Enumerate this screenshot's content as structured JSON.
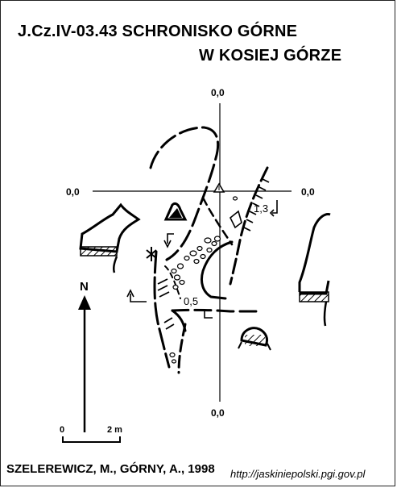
{
  "title": {
    "line1": "J.Cz.IV-03.43  SCHRONISKO  GÓRNE",
    "line2": "W KOSIEJ GÓRZE"
  },
  "datum": {
    "top": "0,0",
    "left": "0,0",
    "right": "0,0",
    "bottom": "0,0"
  },
  "heights": {
    "niche": "1,3",
    "passage": "0,5"
  },
  "north_label": "N",
  "scale": {
    "start": "0",
    "end": "2 m"
  },
  "footer": {
    "authors": "SZELEREWICZ, M., GÓRNY, A., 1998",
    "url": "http://jaskiniepolski.pgi.gov.pl"
  }
}
